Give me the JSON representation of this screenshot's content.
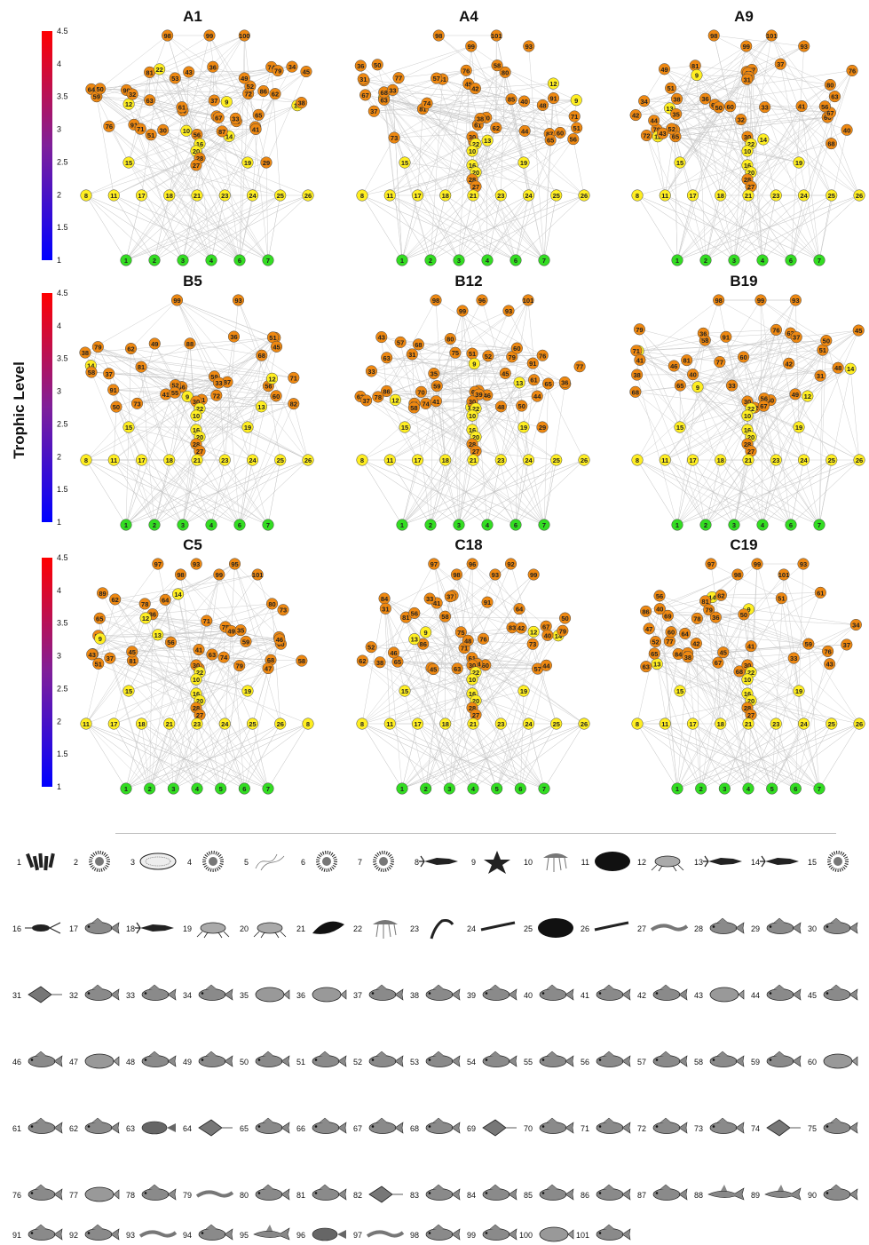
{
  "axis_label": "Trophic Level",
  "colorbar": {
    "ticks": [
      "4.5",
      "4",
      "3.5",
      "3",
      "2.5",
      "2",
      "1.5",
      "1"
    ],
    "color_top": "#ff0000",
    "color_bottom": "#0000ff"
  },
  "node_colors": {
    "basal": "#33dd22",
    "primary": "#ffee22",
    "higher": "#ee8811"
  },
  "panels": [
    {
      "title": "A1",
      "top": [
        "98",
        "99",
        "100"
      ],
      "mid": [
        "14",
        "81",
        "91",
        "90",
        "86",
        "87",
        "13",
        "63",
        "60",
        "71",
        "76",
        "64",
        "61",
        "78",
        "72",
        "74",
        "59",
        "79",
        "65",
        "62",
        "66",
        "67",
        "51",
        "41",
        "9",
        "52",
        "12",
        "32",
        "56",
        "53",
        "39",
        "34",
        "49",
        "30",
        "22",
        "10",
        "36",
        "50",
        "38",
        "33",
        "43",
        "37",
        "45"
      ],
      "low": [
        "15",
        "16",
        "20",
        "28",
        "27",
        "19",
        "29"
      ],
      "base": [
        "8",
        "11",
        "17",
        "18",
        "21",
        "23",
        "24",
        "25",
        "26"
      ],
      "producers": [
        "1",
        "2",
        "3",
        "4",
        "6",
        "7"
      ]
    },
    {
      "title": "A4",
      "top": [
        "98",
        "99",
        "101",
        "93"
      ],
      "mid": [
        "14",
        "81",
        "91",
        "85",
        "87",
        "13",
        "70",
        "77",
        "73",
        "63",
        "62",
        "71",
        "80",
        "76",
        "74",
        "79",
        "68",
        "61",
        "67",
        "65",
        "51",
        "38",
        "52",
        "56",
        "41",
        "9",
        "48",
        "12",
        "36",
        "60",
        "57",
        "45",
        "42",
        "33",
        "40",
        "31",
        "58",
        "50",
        "44",
        "37"
      ],
      "low": [
        "30",
        "22",
        "10",
        "15",
        "16",
        "20",
        "28",
        "27",
        "19"
      ],
      "base": [
        "8",
        "11",
        "17",
        "18",
        "21",
        "23",
        "24",
        "25",
        "26"
      ],
      "producers": [
        "1",
        "2",
        "3",
        "4",
        "6",
        "7"
      ]
    },
    {
      "title": "A9",
      "top": [
        "98",
        "99",
        "101",
        "93"
      ],
      "mid": [
        "14",
        "81",
        "91",
        "13",
        "63",
        "77",
        "71",
        "72",
        "80",
        "76",
        "79",
        "68",
        "66",
        "61",
        "67",
        "65",
        "51",
        "38",
        "9",
        "56",
        "52",
        "32",
        "41",
        "49",
        "12",
        "35",
        "60",
        "45",
        "57",
        "50",
        "42",
        "34",
        "36",
        "40",
        "43",
        "33",
        "37",
        "44",
        "31"
      ],
      "low": [
        "30",
        "22",
        "10",
        "15",
        "16",
        "20",
        "28",
        "27",
        "19"
      ],
      "base": [
        "8",
        "11",
        "17",
        "18",
        "21",
        "23",
        "24",
        "25",
        "26"
      ],
      "producers": [
        "1",
        "2",
        "3",
        "4",
        "6",
        "7"
      ]
    },
    {
      "title": "B5",
      "top": [
        "99",
        "93"
      ],
      "mid": [
        "14",
        "81",
        "91",
        "87",
        "82",
        "88",
        "13",
        "71",
        "59",
        "56",
        "72",
        "68",
        "79",
        "73",
        "66",
        "60",
        "62",
        "65",
        "61",
        "51",
        "41",
        "52",
        "9",
        "49",
        "12",
        "55",
        "58",
        "50",
        "38",
        "45",
        "36",
        "33",
        "37"
      ],
      "low": [
        "30",
        "22",
        "10",
        "15",
        "16",
        "20",
        "28",
        "27",
        "19"
      ],
      "base": [
        "8",
        "11",
        "17",
        "18",
        "21",
        "23",
        "24",
        "25",
        "26"
      ],
      "producers": [
        "1",
        "2",
        "3",
        "4",
        "6",
        "7"
      ]
    },
    {
      "title": "B12",
      "top": [
        "98",
        "99",
        "96",
        "93",
        "101"
      ],
      "mid": [
        "14",
        "81",
        "91",
        "86",
        "77",
        "75",
        "80",
        "76",
        "74",
        "79",
        "78",
        "13",
        "70",
        "63",
        "62",
        "71",
        "68",
        "67",
        "61",
        "65",
        "46",
        "59",
        "57",
        "51",
        "52",
        "48",
        "45",
        "44",
        "9",
        "41",
        "35",
        "12",
        "34",
        "39",
        "36",
        "60",
        "50",
        "43",
        "37",
        "31",
        "33",
        "58"
      ],
      "low": [
        "30",
        "22",
        "10",
        "15",
        "16",
        "20",
        "28",
        "27",
        "19",
        "29"
      ],
      "base": [
        "8",
        "11",
        "17",
        "18",
        "21",
        "23",
        "24",
        "25",
        "26"
      ],
      "producers": [
        "1",
        "2",
        "3",
        "4",
        "6",
        "7"
      ]
    },
    {
      "title": "B19",
      "top": [
        "98",
        "99",
        "93"
      ],
      "mid": [
        "14",
        "81",
        "91",
        "80",
        "79",
        "77",
        "13",
        "63",
        "71",
        "62",
        "56",
        "76",
        "60",
        "68",
        "67",
        "65",
        "58",
        "46",
        "41",
        "51",
        "12",
        "9",
        "48",
        "42",
        "36",
        "50",
        "40",
        "33",
        "38",
        "31",
        "45",
        "37",
        "49"
      ],
      "low": [
        "30",
        "22",
        "10",
        "15",
        "16",
        "20",
        "28",
        "27",
        "19"
      ],
      "base": [
        "8",
        "11",
        "17",
        "18",
        "21",
        "23",
        "24",
        "25",
        "26"
      ],
      "producers": [
        "1",
        "2",
        "3",
        "4",
        "6",
        "7"
      ]
    },
    {
      "title": "C5",
      "top": [
        "97",
        "98",
        "93",
        "99",
        "95",
        "101"
      ],
      "mid": [
        "14",
        "81",
        "84",
        "89",
        "82",
        "13",
        "75",
        "63",
        "59",
        "56",
        "51",
        "71",
        "79",
        "73",
        "62",
        "60",
        "64",
        "80",
        "78",
        "68",
        "58",
        "45",
        "74",
        "61",
        "43",
        "65",
        "46",
        "9",
        "41",
        "36",
        "49",
        "12",
        "33",
        "37",
        "35",
        "47"
      ],
      "low": [
        "30",
        "22",
        "10",
        "15",
        "16",
        "20",
        "28",
        "27",
        "19"
      ],
      "base": [
        "11",
        "17",
        "18",
        "21",
        "23",
        "24",
        "25",
        "26",
        "8"
      ],
      "producers": [
        "1",
        "2",
        "3",
        "4",
        "5",
        "6",
        "7"
      ]
    },
    {
      "title": "C18",
      "top": [
        "97",
        "98",
        "96",
        "93",
        "92",
        "99"
      ],
      "mid": [
        "14",
        "81",
        "83",
        "91",
        "84",
        "86",
        "13",
        "75",
        "63",
        "56",
        "60",
        "71",
        "79",
        "73",
        "64",
        "76",
        "68",
        "61",
        "74",
        "67",
        "65",
        "46",
        "41",
        "52",
        "12",
        "9",
        "48",
        "42",
        "62",
        "57",
        "43",
        "40",
        "33",
        "50",
        "38",
        "58",
        "44",
        "31",
        "45",
        "37"
      ],
      "low": [
        "30",
        "22",
        "10",
        "15",
        "16",
        "20",
        "28",
        "27",
        "19"
      ],
      "base": [
        "8",
        "11",
        "17",
        "18",
        "21",
        "23",
        "24",
        "25",
        "26"
      ],
      "producers": [
        "1",
        "2",
        "3",
        "4",
        "5",
        "6",
        "7"
      ]
    },
    {
      "title": "C19",
      "top": [
        "97",
        "98",
        "99",
        "101",
        "93"
      ],
      "mid": [
        "14",
        "84",
        "81",
        "86",
        "77",
        "80",
        "76",
        "79",
        "69",
        "13",
        "63",
        "62",
        "56",
        "51",
        "78",
        "64",
        "68",
        "60",
        "59",
        "61",
        "67",
        "65",
        "47",
        "38",
        "9",
        "41",
        "52",
        "36",
        "49",
        "42",
        "34",
        "45",
        "40",
        "33",
        "50",
        "37",
        "43"
      ],
      "low": [
        "30",
        "22",
        "10",
        "15",
        "16",
        "20",
        "28",
        "27",
        "19"
      ],
      "base": [
        "8",
        "11",
        "17",
        "18",
        "21",
        "23",
        "24",
        "25",
        "26"
      ],
      "producers": [
        "1",
        "2",
        "3",
        "4",
        "5",
        "6",
        "7"
      ]
    }
  ],
  "species_numbers": [
    "1",
    "2",
    "3",
    "4",
    "5",
    "6",
    "7",
    "8",
    "9",
    "10",
    "11",
    "12",
    "13",
    "14",
    "15",
    "16",
    "17",
    "18",
    "19",
    "20",
    "21",
    "22",
    "23",
    "24",
    "25",
    "26",
    "27",
    "28",
    "29",
    "30",
    "31",
    "32",
    "33",
    "34",
    "35",
    "36",
    "37",
    "38",
    "39",
    "40",
    "41",
    "42",
    "43",
    "44",
    "45",
    "46",
    "47",
    "48",
    "49",
    "50",
    "51",
    "52",
    "53",
    "54",
    "55",
    "56",
    "57",
    "58",
    "59",
    "60",
    "61",
    "62",
    "63",
    "64",
    "65",
    "66",
    "67",
    "68",
    "69",
    "70",
    "71",
    "72",
    "73",
    "74",
    "75",
    "76",
    "77",
    "78",
    "79",
    "80",
    "81",
    "82",
    "83",
    "84",
    "85",
    "86",
    "87",
    "88",
    "89",
    "90",
    "91",
    "92",
    "93",
    "94",
    "95",
    "96",
    "97",
    "98",
    "99",
    "100",
    "101"
  ],
  "species_icons": [
    "seagrass-icon",
    "plankton-icon",
    "diatom-icon",
    "plankton-icon",
    "filament-icon",
    "plankton-icon",
    "plankton-icon",
    "cephalopod-icon",
    "starfish-icon",
    "jellyfish-icon",
    "sponge-icon",
    "crab-icon",
    "squid-icon",
    "squid-icon",
    "urchin-icon",
    "copepod-icon",
    "fish-icon",
    "cephalopod-icon",
    "shrimp-icon",
    "shrimp-icon",
    "mussel-icon",
    "jellyfish-icon",
    "crinoid-icon",
    "worm-icon",
    "sponge-icon",
    "polychaete-icon",
    "eel-icon",
    "fish-icon",
    "fish-icon",
    "fish-icon",
    "ray-icon",
    "fish-icon",
    "fish-icon",
    "fish-icon",
    "flatfish-icon",
    "flatfish-icon",
    "fish-icon",
    "fish-icon",
    "fish-icon",
    "fish-icon",
    "fish-icon",
    "fish-icon",
    "flatfish-icon",
    "fish-icon",
    "fish-icon",
    "fish-icon",
    "flatfish-icon",
    "fish-icon",
    "fish-icon",
    "fish-icon",
    "fish-icon",
    "fish-icon",
    "fish-icon",
    "fish-icon",
    "fish-icon",
    "fish-icon",
    "fish-icon",
    "fish-icon",
    "fish-icon",
    "flatfish-icon",
    "fish-icon",
    "fish-icon",
    "catfish-icon",
    "ray-icon",
    "fish-icon",
    "fish-icon",
    "fish-icon",
    "fish-icon",
    "ray-icon",
    "fish-icon",
    "fish-icon",
    "fish-icon",
    "fish-icon",
    "ray-icon",
    "fish-icon",
    "fish-icon",
    "flatfish-icon",
    "fish-icon",
    "eel-icon",
    "fish-icon",
    "fish-icon",
    "ray-icon",
    "fish-icon",
    "fish-icon",
    "fish-icon",
    "fish-icon",
    "fish-icon",
    "shark-icon",
    "shark-icon",
    "fish-icon",
    "fish-icon",
    "fish-icon",
    "eel-icon",
    "fish-icon",
    "shark-icon",
    "anglerfish-icon",
    "eel-icon",
    "fish-icon",
    "fish-icon",
    "flatfish-icon",
    "fish-icon"
  ]
}
